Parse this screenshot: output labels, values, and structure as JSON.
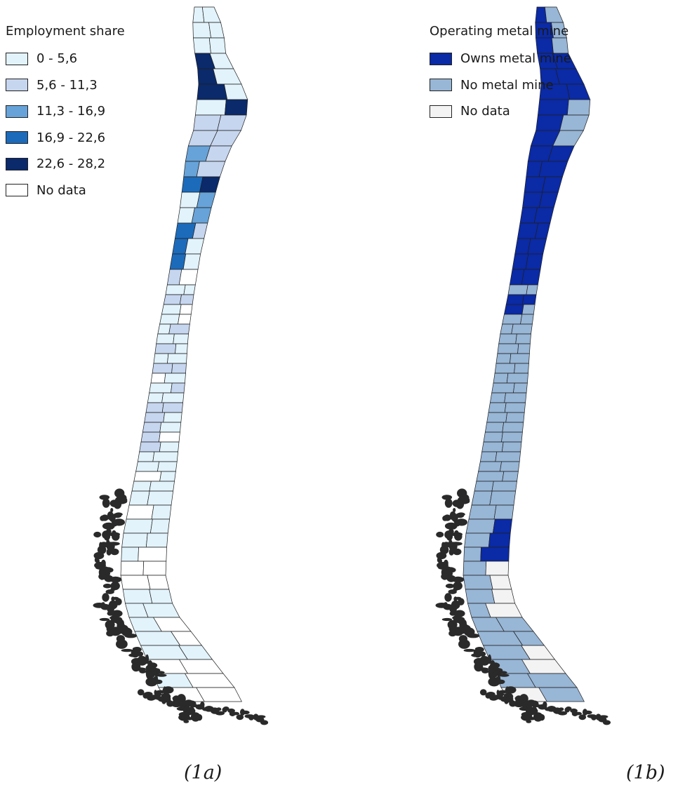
{
  "colors": {
    "outline": "#1f1f1f",
    "coast_fill": "#2a2a2a"
  },
  "map_a": {
    "legend_title": "Employment share",
    "classes": [
      {
        "label": "0 - 5,6",
        "color": "#e2f3fb"
      },
      {
        "label": "5,6 - 11,3",
        "color": "#c7d6ef"
      },
      {
        "label": "11,3 - 16,9",
        "color": "#67a3d8"
      },
      {
        "label": "16,9 - 22,6",
        "color": "#1c6bbb"
      },
      {
        "label": "22,6 - 28,2",
        "color": "#0a2a6b"
      },
      {
        "label": "No data",
        "color": "#ffffff"
      }
    ],
    "caption": "(1a)"
  },
  "map_b": {
    "legend_title": "Operating metal mine",
    "classes": [
      {
        "label": "Owns metal mine",
        "color": "#0a2aa6"
      },
      {
        "label": "No metal mine",
        "color": "#98b6d6"
      },
      {
        "label": "No data",
        "color": "#f3f3f3"
      }
    ],
    "caption": "(1b)"
  }
}
